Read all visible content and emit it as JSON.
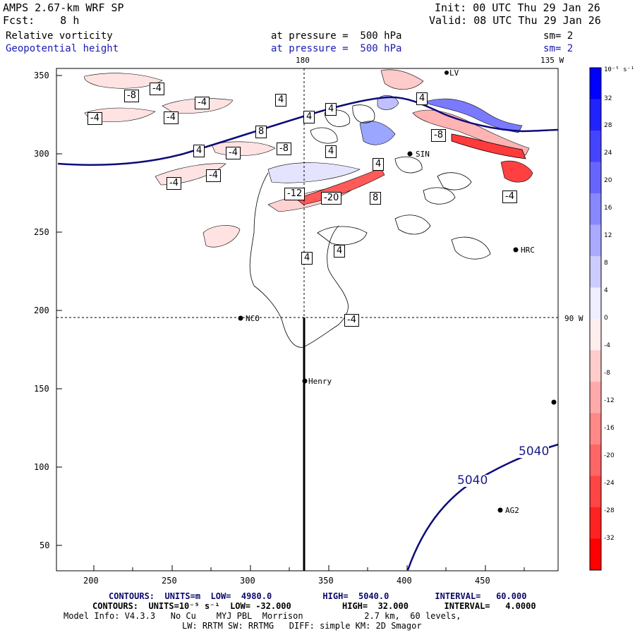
{
  "header": {
    "model_title": "AMPS 2.67-km WRF SP",
    "forecast": "Fcst:    8 h",
    "init": "Init: 00 UTC Thu 29 Jan 26",
    "valid": "Valid: 08 UTC Thu 29 Jan 26",
    "field1": {
      "name": "Relative vorticity",
      "level": "at pressure =  500 hPa",
      "smooth": "sm= 2"
    },
    "field2": {
      "name": "Geopotential height",
      "level": "at pressure =  500 hPa",
      "smooth": "sm= 2"
    }
  },
  "meridian_labels": {
    "m180": "180",
    "m135w": "135 W",
    "m90w": "90 W"
  },
  "axes": {
    "x_ticks": [
      "200",
      "250",
      "300",
      "350",
      "400",
      "450"
    ],
    "y_ticks": [
      "350",
      "300",
      "250",
      "200",
      "150",
      "100",
      "50"
    ]
  },
  "stations": [
    {
      "id": "nco",
      "label": "NCO"
    },
    {
      "id": "henry",
      "label": "Henry"
    },
    {
      "id": "hrc",
      "label": "HRC"
    },
    {
      "id": "ag2",
      "label": "AG2"
    },
    {
      "id": "sin",
      "label": "SIN"
    },
    {
      "id": "lv",
      "label": "LV"
    }
  ],
  "contour_labels": {
    "h1": "5040",
    "h2": "5040",
    "vort": [
      "-8",
      "-4",
      "-4",
      "-4",
      "-4",
      "4",
      "4",
      "8",
      "-4",
      "-4",
      "-4",
      "-8",
      "4",
      "4",
      "-4",
      "4",
      "-12",
      "-20",
      "8",
      "4",
      "-8",
      "-4",
      "4",
      "4",
      "4"
    ]
  },
  "colorbar": {
    "units": "10⁻⁵ s⁻¹",
    "labels": [
      "32",
      "28",
      "24",
      "20",
      "16",
      "12",
      "8",
      "4",
      "0",
      "-4",
      "-8",
      "-12",
      "-16",
      "-20",
      "-24",
      "-28",
      "-32"
    ],
    "colors": [
      "#0000ff",
      "#2222ff",
      "#4444ff",
      "#6666ff",
      "#8888ff",
      "#aaaaff",
      "#ccccff",
      "#eeeeff",
      "#ffeeee",
      "#ffcccc",
      "#ffaaaa",
      "#ff8888",
      "#ff6666",
      "#ff4444",
      "#ff2222",
      "#ff0000"
    ]
  },
  "footer": {
    "line1": "CONTOURS:  UNITS=m  LOW=  4980.0          HIGH=  5040.0         INTERVAL=   60.000",
    "line2": "CONTOURS:  UNITS=10⁻⁵ s⁻¹  LOW= -32.000          HIGH=  32.000       INTERVAL=   4.0000",
    "line3": "Model Info: V4.3.3   No Cu    MYJ PBL  Morrison            2.7 km,  60 levels,",
    "line4": "LW: RRTM SW: RRTMG   DIFF: simple KM: 2D Smagor"
  }
}
